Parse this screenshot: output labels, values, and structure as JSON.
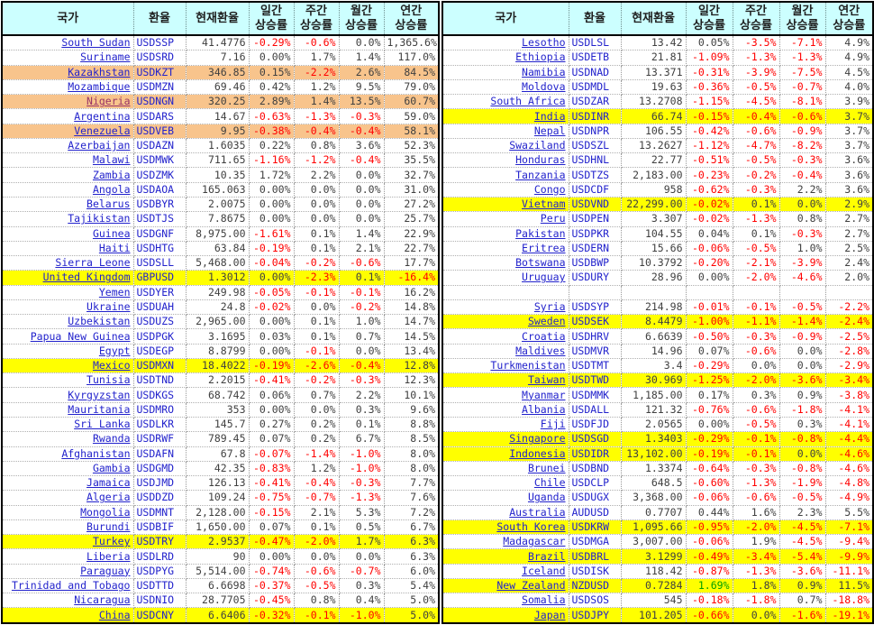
{
  "headers": [
    {
      "key": "country",
      "label": "국가"
    },
    {
      "key": "code",
      "label": "환율"
    },
    {
      "key": "rate",
      "label": "현재환율"
    },
    {
      "key": "daily",
      "label": "일간\n상승률"
    },
    {
      "key": "weekly",
      "label": "주간\n상승률"
    },
    {
      "key": "monthly",
      "label": "월간\n상승률"
    },
    {
      "key": "yearly",
      "label": "연간\n상승률"
    }
  ],
  "colors": {
    "header_bg": "#ccffff",
    "link": "#2222cc",
    "visited": "#993366",
    "val": "#404040",
    "neg": "#ff0000",
    "green": "#00a000",
    "hl_yellow": "#ffff00",
    "hl_orange": "#f8c48c"
  },
  "left_table": {
    "rows": [
      {
        "country": "South Sudan",
        "code": "USDSSP",
        "rate": "41.4776",
        "daily": "-0.29%",
        "weekly": "-0.6%",
        "monthly": "0.0%",
        "yearly": "1,365.6%"
      },
      {
        "country": "Suriname",
        "code": "USDSRD",
        "rate": "7.16",
        "daily": "0.00%",
        "weekly": "1.7%",
        "monthly": "1.4%",
        "yearly": "117.0%"
      },
      {
        "country": "Kazakhstan",
        "code": "USDKZT",
        "rate": "346.85",
        "daily": "0.15%",
        "weekly": "-2.2%",
        "monthly": "2.6%",
        "yearly": "84.5%",
        "highlight": "orange"
      },
      {
        "country": "Mozambique",
        "code": "USDMZN",
        "rate": "69.46",
        "daily": "0.42%",
        "weekly": "1.2%",
        "monthly": "9.5%",
        "yearly": "79.0%"
      },
      {
        "country": "Nigeria",
        "code": "USDNGN",
        "rate": "320.25",
        "daily": "2.89%",
        "weekly": "1.4%",
        "monthly": "13.5%",
        "yearly": "60.7%",
        "highlight": "orange",
        "country_visited": true
      },
      {
        "country": "Argentina",
        "code": "USDARS",
        "rate": "14.67",
        "daily": "-0.63%",
        "weekly": "-1.3%",
        "monthly": "-0.3%",
        "yearly": "59.0%"
      },
      {
        "country": "Venezuela",
        "code": "USDVEB",
        "rate": "9.95",
        "daily": "-0.38%",
        "weekly": "-0.4%",
        "monthly": "-0.4%",
        "yearly": "58.1%",
        "highlight": "orange"
      },
      {
        "country": "Azerbaijan",
        "code": "USDAZN",
        "rate": "1.6035",
        "daily": "0.22%",
        "weekly": "0.8%",
        "monthly": "3.6%",
        "yearly": "52.3%"
      },
      {
        "country": "Malawi",
        "code": "USDMWK",
        "rate": "711.65",
        "daily": "-1.16%",
        "weekly": "-1.2%",
        "monthly": "-0.4%",
        "yearly": "35.5%"
      },
      {
        "country": "Zambia",
        "code": "USDZMK",
        "rate": "10.35",
        "daily": "1.72%",
        "weekly": "2.2%",
        "monthly": "0.0%",
        "yearly": "32.7%"
      },
      {
        "country": "Angola",
        "code": "USDAOA",
        "rate": "165.063",
        "daily": "0.00%",
        "weekly": "0.0%",
        "monthly": "0.0%",
        "yearly": "31.0%"
      },
      {
        "country": "Belarus",
        "code": "USDBYR",
        "rate": "2.0075",
        "daily": "0.00%",
        "weekly": "0.0%",
        "monthly": "0.0%",
        "yearly": "27.2%"
      },
      {
        "country": "Tajikistan",
        "code": "USDTJS",
        "rate": "7.8675",
        "daily": "0.00%",
        "weekly": "0.0%",
        "monthly": "0.0%",
        "yearly": "25.7%"
      },
      {
        "country": "Guinea",
        "code": "USDGNF",
        "rate": "8,975.00",
        "daily": "-1.61%",
        "weekly": "0.1%",
        "monthly": "1.4%",
        "yearly": "22.9%"
      },
      {
        "country": "Haiti",
        "code": "USDHTG",
        "rate": "63.84",
        "daily": "-0.19%",
        "weekly": "0.1%",
        "monthly": "2.1%",
        "yearly": "22.7%"
      },
      {
        "country": "Sierra Leone",
        "code": "USDSLL",
        "rate": "5,468.00",
        "daily": "-0.04%",
        "weekly": "-0.2%",
        "monthly": "-0.6%",
        "yearly": "17.7%"
      },
      {
        "country": "United Kingdom",
        "code": "GBPUSD",
        "rate": "1.3012",
        "daily": "0.00%",
        "weekly": "-2.3%",
        "monthly": "0.1%",
        "yearly": "-16.4%",
        "highlight": "yellow"
      },
      {
        "country": "Yemen",
        "code": "USDYER",
        "rate": "249.98",
        "daily": "-0.05%",
        "weekly": "-0.1%",
        "monthly": "-0.1%",
        "yearly": "16.2%"
      },
      {
        "country": "Ukraine",
        "code": "USDUAH",
        "rate": "24.8",
        "daily": "-0.02%",
        "weekly": "0.0%",
        "monthly": "-0.2%",
        "yearly": "14.8%"
      },
      {
        "country": "Uzbekistan",
        "code": "USDUZS",
        "rate": "2,965.00",
        "daily": "0.00%",
        "weekly": "0.1%",
        "monthly": "1.0%",
        "yearly": "14.7%"
      },
      {
        "country": "Papua New Guinea",
        "code": "USDPGK",
        "rate": "3.1695",
        "daily": "0.03%",
        "weekly": "0.1%",
        "monthly": "0.7%",
        "yearly": "14.5%"
      },
      {
        "country": "Egypt",
        "code": "USDEGP",
        "rate": "8.8799",
        "daily": "0.00%",
        "weekly": "-0.1%",
        "monthly": "0.0%",
        "yearly": "13.4%"
      },
      {
        "country": "Mexico",
        "code": "USDMXN",
        "rate": "18.4022",
        "daily": "-0.19%",
        "weekly": "-2.6%",
        "monthly": "-0.4%",
        "yearly": "12.8%",
        "highlight": "yellow"
      },
      {
        "country": "Tunisia",
        "code": "USDTND",
        "rate": "2.2015",
        "daily": "-0.41%",
        "weekly": "-0.2%",
        "monthly": "-0.3%",
        "yearly": "12.3%"
      },
      {
        "country": "Kyrgyzstan",
        "code": "USDKGS",
        "rate": "68.742",
        "daily": "0.06%",
        "weekly": "0.7%",
        "monthly": "2.2%",
        "yearly": "10.1%"
      },
      {
        "country": "Mauritania",
        "code": "USDMRO",
        "rate": "353",
        "daily": "0.00%",
        "weekly": "0.0%",
        "monthly": "0.3%",
        "yearly": "9.6%"
      },
      {
        "country": "Sri Lanka",
        "code": "USDLKR",
        "rate": "145.7",
        "daily": "0.27%",
        "weekly": "0.2%",
        "monthly": "0.1%",
        "yearly": "8.8%"
      },
      {
        "country": "Rwanda",
        "code": "USDRWF",
        "rate": "789.45",
        "daily": "0.07%",
        "weekly": "0.2%",
        "monthly": "6.7%",
        "yearly": "8.5%"
      },
      {
        "country": "Afghanistan",
        "code": "USDAFN",
        "rate": "67.8",
        "daily": "-0.07%",
        "weekly": "-1.4%",
        "monthly": "-1.0%",
        "yearly": "8.0%"
      },
      {
        "country": "Gambia",
        "code": "USDGMD",
        "rate": "42.35",
        "daily": "-0.83%",
        "weekly": "1.2%",
        "monthly": "-1.0%",
        "yearly": "8.0%"
      },
      {
        "country": "Jamaica",
        "code": "USDJMD",
        "rate": "126.13",
        "daily": "-0.41%",
        "weekly": "-0.4%",
        "monthly": "-0.3%",
        "yearly": "7.7%"
      },
      {
        "country": "Algeria",
        "code": "USDDZD",
        "rate": "109.24",
        "daily": "-0.75%",
        "weekly": "-0.7%",
        "monthly": "-1.3%",
        "yearly": "7.6%"
      },
      {
        "country": "Mongolia",
        "code": "USDMNT",
        "rate": "2,128.00",
        "daily": "-0.15%",
        "weekly": "2.1%",
        "monthly": "5.3%",
        "yearly": "7.2%"
      },
      {
        "country": "Burundi",
        "code": "USDBIF",
        "rate": "1,650.00",
        "daily": "0.07%",
        "weekly": "0.1%",
        "monthly": "0.5%",
        "yearly": "6.7%"
      },
      {
        "country": "Turkey",
        "code": "USDTRY",
        "rate": "2.9537",
        "daily": "-0.47%",
        "weekly": "-2.0%",
        "monthly": "1.7%",
        "yearly": "6.3%",
        "highlight": "yellow"
      },
      {
        "country": "Liberia",
        "code": "USDLRD",
        "rate": "90",
        "daily": "0.00%",
        "weekly": "0.0%",
        "monthly": "0.0%",
        "yearly": "6.3%"
      },
      {
        "country": "Paraguay",
        "code": "USDPYG",
        "rate": "5,514.00",
        "daily": "-0.74%",
        "weekly": "-0.6%",
        "monthly": "-0.7%",
        "yearly": "6.0%"
      },
      {
        "country": "Trinidad and Tobago",
        "code": "USDTTD",
        "rate": "6.6698",
        "daily": "-0.37%",
        "weekly": "-0.5%",
        "monthly": "0.3%",
        "yearly": "5.4%"
      },
      {
        "country": "Nicaragua",
        "code": "USDNIO",
        "rate": "28.7705",
        "daily": "-0.45%",
        "weekly": "0.8%",
        "monthly": "0.4%",
        "yearly": "5.0%"
      },
      {
        "country": "China",
        "code": "USDCNY",
        "rate": "6.6406",
        "daily": "-0.32%",
        "weekly": "-0.1%",
        "monthly": "-1.0%",
        "yearly": "5.0%",
        "highlight": "yellow"
      }
    ]
  },
  "right_table": {
    "rows": [
      {
        "country": "Lesotho",
        "code": "USDLSL",
        "rate": "13.42",
        "daily": "0.05%",
        "weekly": "-3.5%",
        "monthly": "-7.1%",
        "yearly": "4.9%"
      },
      {
        "country": "Ethiopia",
        "code": "USDETB",
        "rate": "21.81",
        "daily": "-1.09%",
        "weekly": "-1.3%",
        "monthly": "-1.3%",
        "yearly": "4.9%"
      },
      {
        "country": "Namibia",
        "code": "USDNAD",
        "rate": "13.371",
        "daily": "-0.31%",
        "weekly": "-3.9%",
        "monthly": "-7.5%",
        "yearly": "4.5%"
      },
      {
        "country": "Moldova",
        "code": "USDMDL",
        "rate": "19.63",
        "daily": "-0.36%",
        "weekly": "-0.5%",
        "monthly": "-0.7%",
        "yearly": "4.0%"
      },
      {
        "country": "South Africa",
        "code": "USDZAR",
        "rate": "13.2708",
        "daily": "-1.15%",
        "weekly": "-4.5%",
        "monthly": "-8.1%",
        "yearly": "3.9%"
      },
      {
        "country": "India",
        "code": "USDINR",
        "rate": "66.74",
        "daily": "-0.15%",
        "weekly": "-0.4%",
        "monthly": "-0.6%",
        "yearly": "3.7%",
        "highlight": "yellow"
      },
      {
        "country": "Nepal",
        "code": "USDNPR",
        "rate": "106.55",
        "daily": "-0.42%",
        "weekly": "-0.6%",
        "monthly": "-0.9%",
        "yearly": "3.7%"
      },
      {
        "country": "Swaziland",
        "code": "USDSZL",
        "rate": "13.2627",
        "daily": "-1.12%",
        "weekly": "-4.7%",
        "monthly": "-8.2%",
        "yearly": "3.7%"
      },
      {
        "country": "Honduras",
        "code": "USDHNL",
        "rate": "22.77",
        "daily": "-0.51%",
        "weekly": "-0.5%",
        "monthly": "-0.3%",
        "yearly": "3.6%"
      },
      {
        "country": "Tanzania",
        "code": "USDTZS",
        "rate": "2,183.00",
        "daily": "-0.23%",
        "weekly": "-0.2%",
        "monthly": "-0.4%",
        "yearly": "3.6%"
      },
      {
        "country": "Congo",
        "code": "USDCDF",
        "rate": "958",
        "daily": "-0.62%",
        "weekly": "-0.3%",
        "monthly": "2.2%",
        "yearly": "3.6%"
      },
      {
        "country": "Vietnam",
        "code": "USDVND",
        "rate": "22,299.00",
        "daily": "-0.02%",
        "weekly": "0.1%",
        "monthly": "0.0%",
        "yearly": "2.9%",
        "highlight": "yellow"
      },
      {
        "country": "Peru",
        "code": "USDPEN",
        "rate": "3.307",
        "daily": "-0.02%",
        "weekly": "-1.3%",
        "monthly": "0.8%",
        "yearly": "2.7%"
      },
      {
        "country": "Pakistan",
        "code": "USDPKR",
        "rate": "104.55",
        "daily": "0.04%",
        "weekly": "0.1%",
        "monthly": "-0.3%",
        "yearly": "2.7%"
      },
      {
        "country": "Eritrea",
        "code": "USDERN",
        "rate": "15.66",
        "daily": "-0.06%",
        "weekly": "-0.5%",
        "monthly": "1.0%",
        "yearly": "2.5%"
      },
      {
        "country": "Botswana",
        "code": "USDBWP",
        "rate": "10.3792",
        "daily": "-0.20%",
        "weekly": "-2.1%",
        "monthly": "-3.9%",
        "yearly": "2.4%"
      },
      {
        "country": "Uruguay",
        "code": "USDURY",
        "rate": "28.96",
        "daily": "0.00%",
        "weekly": "-2.0%",
        "monthly": "-4.6%",
        "yearly": "2.0%"
      },
      {
        "country": "",
        "code": "",
        "rate": "",
        "daily": "",
        "weekly": "",
        "monthly": "",
        "yearly": ""
      },
      {
        "country": "Syria",
        "code": "USDSYP",
        "rate": "214.98",
        "daily": "-0.01%",
        "weekly": "-0.1%",
        "monthly": "-0.5%",
        "yearly": "-2.2%"
      },
      {
        "country": "Sweden",
        "code": "USDSEK",
        "rate": "8.4479",
        "daily": "-1.00%",
        "weekly": "-1.1%",
        "monthly": "-1.4%",
        "yearly": "-2.4%",
        "highlight": "yellow"
      },
      {
        "country": "Croatia",
        "code": "USDHRV",
        "rate": "6.6639",
        "daily": "-0.50%",
        "weekly": "-0.3%",
        "monthly": "-0.9%",
        "yearly": "-2.5%"
      },
      {
        "country": "Maldives",
        "code": "USDMVR",
        "rate": "14.96",
        "daily": "0.07%",
        "weekly": "-0.6%",
        "monthly": "0.0%",
        "yearly": "-2.8%"
      },
      {
        "country": "Turkmenistan",
        "code": "USDTMT",
        "rate": "3.4",
        "daily": "-0.29%",
        "weekly": "0.0%",
        "monthly": "0.0%",
        "yearly": "-2.9%"
      },
      {
        "country": "Taiwan",
        "code": "USDTWD",
        "rate": "30.969",
        "daily": "-1.25%",
        "weekly": "-2.0%",
        "monthly": "-3.6%",
        "yearly": "-3.4%",
        "highlight": "yellow"
      },
      {
        "country": "Myanmar",
        "code": "USDMMK",
        "rate": "1,185.00",
        "daily": "0.17%",
        "weekly": "0.3%",
        "monthly": "0.9%",
        "yearly": "-3.8%"
      },
      {
        "country": "Albania",
        "code": "USDALL",
        "rate": "121.32",
        "daily": "-0.76%",
        "weekly": "-0.6%",
        "monthly": "-1.8%",
        "yearly": "-4.1%"
      },
      {
        "country": "Fiji",
        "code": "USDFJD",
        "rate": "2.0565",
        "daily": "0.00%",
        "weekly": "-0.5%",
        "monthly": "0.3%",
        "yearly": "-4.1%"
      },
      {
        "country": "Singapore",
        "code": "USDSGD",
        "rate": "1.3403",
        "daily": "-0.29%",
        "weekly": "-0.1%",
        "monthly": "-0.8%",
        "yearly": "-4.4%",
        "highlight": "yellow"
      },
      {
        "country": "Indonesia",
        "code": "USDIDR",
        "rate": "13,102.00",
        "daily": "-0.19%",
        "weekly": "-0.1%",
        "monthly": "0.0%",
        "yearly": "-4.6%",
        "highlight": "yellow"
      },
      {
        "country": "Brunei",
        "code": "USDBND",
        "rate": "1.3374",
        "daily": "-0.64%",
        "weekly": "-0.3%",
        "monthly": "-0.8%",
        "yearly": "-4.6%"
      },
      {
        "country": "Chile",
        "code": "USDCLP",
        "rate": "648.5",
        "daily": "-0.60%",
        "weekly": "-1.3%",
        "monthly": "-1.9%",
        "yearly": "-4.8%"
      },
      {
        "country": "Uganda",
        "code": "USDUGX",
        "rate": "3,368.00",
        "daily": "-0.06%",
        "weekly": "-0.6%",
        "monthly": "-0.5%",
        "yearly": "-4.9%"
      },
      {
        "country": "Australia",
        "code": "AUDUSD",
        "rate": "0.7707",
        "daily": "0.44%",
        "weekly": "1.6%",
        "monthly": "2.3%",
        "yearly": "5.5%"
      },
      {
        "country": "South Korea",
        "code": "USDKRW",
        "rate": "1,095.66",
        "daily": "-0.95%",
        "weekly": "-2.0%",
        "monthly": "-4.5%",
        "yearly": "-7.1%",
        "highlight": "yellow"
      },
      {
        "country": "Madagascar",
        "code": "USDMGA",
        "rate": "3,007.00",
        "daily": "-0.06%",
        "weekly": "1.9%",
        "monthly": "-4.5%",
        "yearly": "-9.4%"
      },
      {
        "country": "Brazil",
        "code": "USDBRL",
        "rate": "3.1299",
        "daily": "-0.49%",
        "weekly": "-3.4%",
        "monthly": "-5.4%",
        "yearly": "-9.9%",
        "highlight": "yellow"
      },
      {
        "country": "Iceland",
        "code": "USDISK",
        "rate": "118.42",
        "daily": "-0.87%",
        "weekly": "-1.3%",
        "monthly": "-3.6%",
        "yearly": "-11.1%"
      },
      {
        "country": "New Zealand",
        "code": "NZDUSD",
        "rate": "0.7284",
        "daily": "1.69%",
        "weekly": "1.8%",
        "monthly": "0.9%",
        "yearly": "11.5%",
        "highlight": "yellow",
        "daily_green": true
      },
      {
        "country": "Somalia",
        "code": "USDSOS",
        "rate": "545",
        "daily": "-0.18%",
        "weekly": "-1.8%",
        "monthly": "0.7%",
        "yearly": "-18.8%"
      },
      {
        "country": "Japan",
        "code": "USDJPY",
        "rate": "101.205",
        "daily": "-0.66%",
        "weekly": "0.0%",
        "monthly": "-1.6%",
        "yearly": "-19.1%",
        "highlight": "yellow"
      }
    ]
  }
}
